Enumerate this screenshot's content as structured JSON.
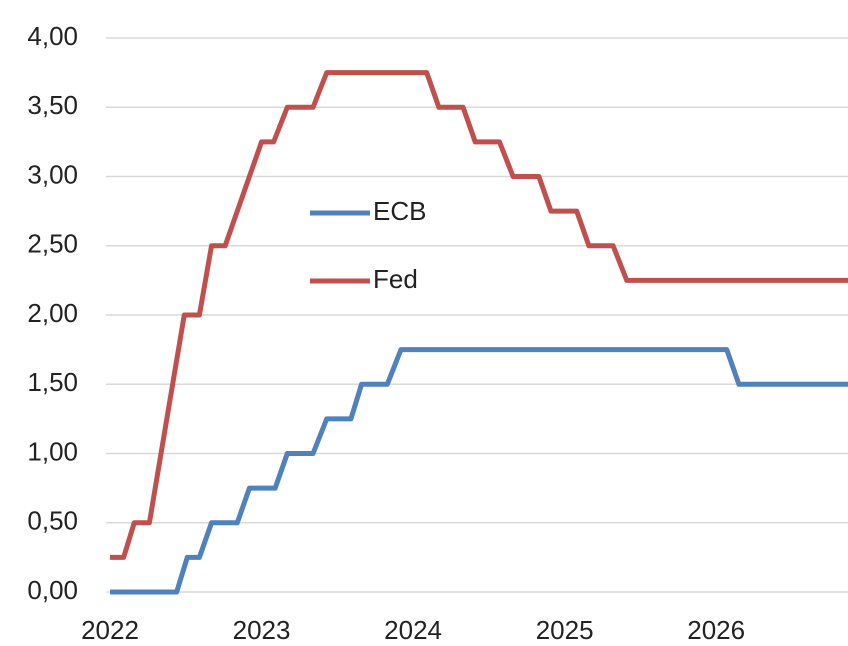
{
  "chart_data": {
    "type": "line",
    "xlim": [
      2022,
      2026.87
    ],
    "xticks": [
      2022,
      2023,
      2024,
      2025,
      2026
    ],
    "ylim": [
      0,
      4
    ],
    "yticks": [
      {
        "value": 0,
        "label": "0,00"
      },
      {
        "value": 0.5,
        "label": "0,50"
      },
      {
        "value": 1,
        "label": "1,00"
      },
      {
        "value": 1.5,
        "label": "1,50"
      },
      {
        "value": 2,
        "label": "2,00"
      },
      {
        "value": 2.5,
        "label": "2,50"
      },
      {
        "value": 3,
        "label": "3,00"
      },
      {
        "value": 3.5,
        "label": "3,50"
      },
      {
        "value": 4,
        "label": "4,00"
      }
    ],
    "grid": true,
    "legend": "center-left",
    "series": [
      {
        "name": "ECB",
        "color": "#4f81bd",
        "x": [
          2022,
          2022.44,
          2022.51,
          2022.59,
          2022.67,
          2022.84,
          2022.92,
          2023.09,
          2023.17,
          2023.34,
          2023.43,
          2023.59,
          2023.66,
          2023.83,
          2023.92,
          2026.07,
          2026.15,
          2026.87
        ],
        "values": [
          0,
          0,
          0.25,
          0.25,
          0.5,
          0.5,
          0.75,
          0.75,
          1,
          1,
          1.25,
          1.25,
          1.5,
          1.5,
          1.75,
          1.75,
          1.5,
          1.5
        ]
      },
      {
        "name": "Fed",
        "color": "#c0504d",
        "x": [
          2022,
          2022.09,
          2022.16,
          2022.26,
          2022.49,
          2022.59,
          2022.67,
          2022.76,
          2023.0,
          2023.08,
          2023.17,
          2023.34,
          2023.43,
          2024.09,
          2024.17,
          2024.33,
          2024.41,
          2024.57,
          2024.66,
          2024.83,
          2024.91,
          2025.08,
          2025.16,
          2025.32,
          2025.41,
          2026.87
        ],
        "values": [
          0.25,
          0.25,
          0.5,
          0.5,
          2,
          2,
          2.5,
          2.5,
          3.25,
          3.25,
          3.5,
          3.5,
          3.75,
          3.75,
          3.5,
          3.5,
          3.25,
          3.25,
          3,
          3,
          2.75,
          2.75,
          2.5,
          2.5,
          2.25,
          2.25
        ]
      }
    ]
  }
}
